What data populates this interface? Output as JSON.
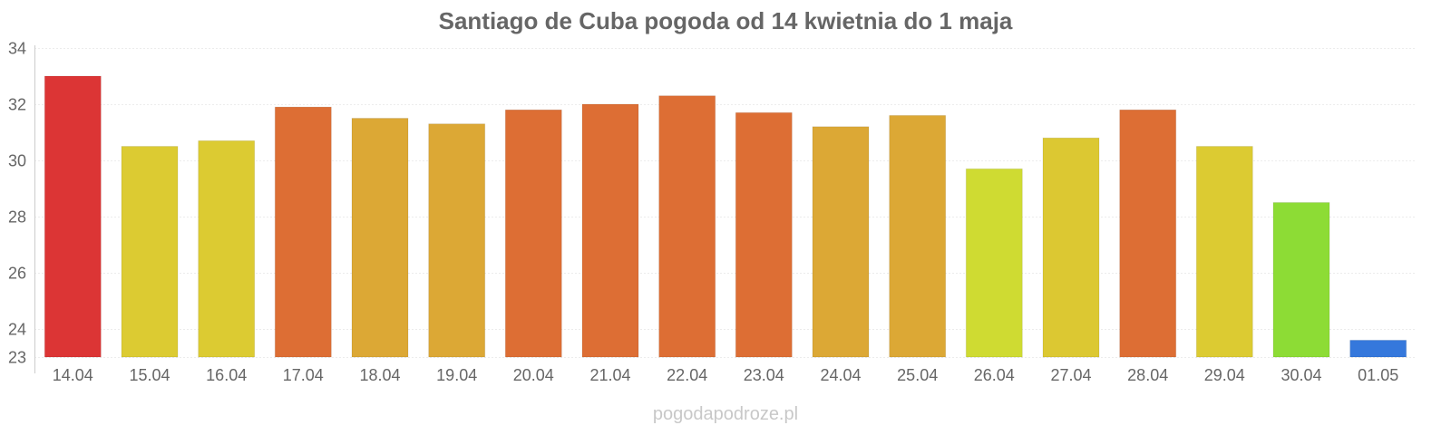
{
  "chart_data": {
    "type": "bar",
    "title": "Santiago de Cuba pogoda od 14 kwietnia do 1 maja",
    "xlabel": "",
    "ylabel": "",
    "ylim": [
      23,
      34
    ],
    "yticks": [
      "34",
      "32",
      "30",
      "28",
      "26",
      "24",
      "23"
    ],
    "ytick_values": [
      34,
      32,
      30,
      28,
      26,
      24,
      23
    ],
    "grid": true,
    "categories": [
      "14.04",
      "15.04",
      "16.04",
      "17.04",
      "18.04",
      "19.04",
      "20.04",
      "21.04",
      "22.04",
      "23.04",
      "24.04",
      "25.04",
      "26.04",
      "27.04",
      "28.04",
      "29.04",
      "30.04",
      "01.05"
    ],
    "values": [
      33.0,
      30.5,
      30.7,
      31.9,
      31.5,
      31.3,
      31.8,
      32.0,
      32.3,
      31.7,
      31.2,
      31.6,
      29.7,
      30.8,
      31.8,
      30.5,
      28.5,
      23.6
    ],
    "colors": [
      "#dc3535",
      "#dccb32",
      "#dccb32",
      "#dd6e34",
      "#dca835",
      "#dca835",
      "#dd6e34",
      "#dd6e34",
      "#dd6e34",
      "#dd6e34",
      "#dca835",
      "#dca835",
      "#cfdb32",
      "#dcc832",
      "#dd6e34",
      "#dccb32",
      "#8ddc35",
      "#3578dc"
    ]
  },
  "watermark": "pogodapodroze.pl"
}
